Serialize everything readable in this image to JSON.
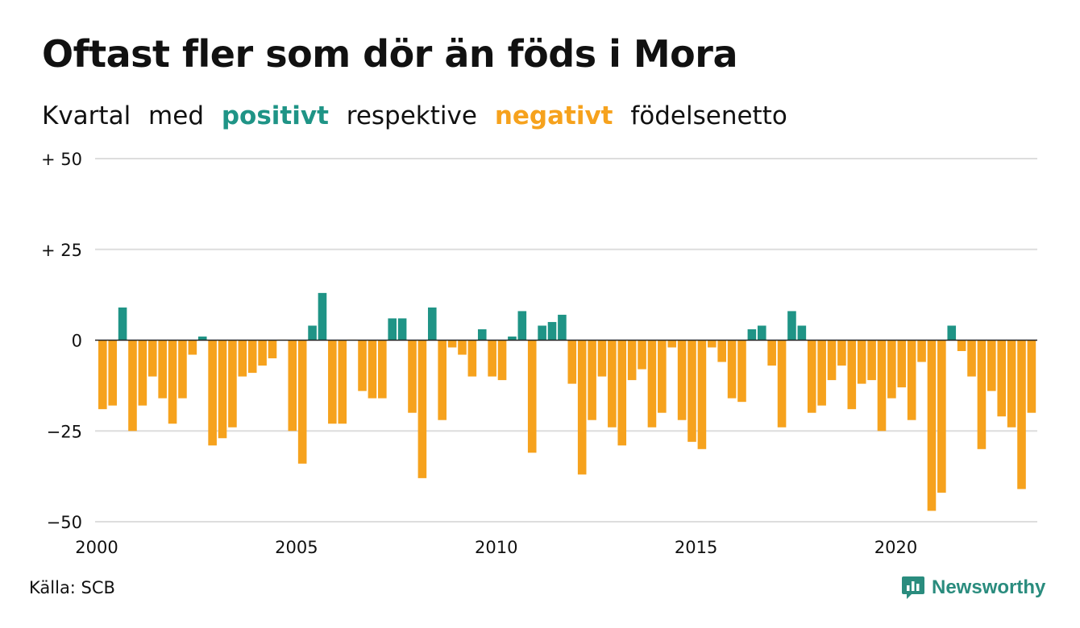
{
  "title": "Oftast fler som dör än föds i Mora",
  "subtitle": {
    "part1": "Kvartal",
    "part2": "med",
    "positive": "positivt",
    "part3": "respektive",
    "negative": "negativt",
    "part4": "födelsenetto"
  },
  "colors": {
    "positive": "#1f9486",
    "negative": "#f6a21d",
    "grid": "#dddddd",
    "zero_line": "#222222"
  },
  "source": "Källa: SCB",
  "brand": {
    "name": "Newsworthy",
    "icon": "newsworthy-logo-icon"
  },
  "chart_data": {
    "type": "bar",
    "title": "Oftast fler som dör än föds i Mora",
    "subtitle": "Kvartal med positivt respektive negativt födelsenetto",
    "xlabel": "",
    "ylabel": "",
    "x_start": "2000 Q1",
    "period": "quarter",
    "ylim": [
      -50,
      50
    ],
    "yticks": [
      50,
      25,
      0,
      -25,
      -50
    ],
    "ytick_labels": [
      "+ 50",
      "+ 25",
      "0",
      "−25",
      "−50"
    ],
    "xtick_labels": [
      "2000",
      "2005",
      "2010",
      "2015",
      "2020"
    ],
    "grid": true,
    "values": [
      -19,
      -18,
      9,
      -25,
      -18,
      -10,
      -16,
      -23,
      -16,
      -4,
      1,
      -29,
      -27,
      -24,
      -10,
      -9,
      -7,
      -5,
      0,
      -25,
      -34,
      4,
      13,
      -23,
      -23,
      0,
      -14,
      -16,
      -16,
      6,
      6,
      -20,
      -38,
      9,
      -22,
      -2,
      -4,
      -10,
      3,
      -10,
      -11,
      1,
      8,
      -31,
      4,
      5,
      7,
      -12,
      -37,
      -22,
      -10,
      -24,
      -29,
      -11,
      -8,
      -24,
      -20,
      -2,
      -22,
      -28,
      -30,
      -2,
      -6,
      -16,
      -17,
      3,
      4,
      -7,
      -24,
      8,
      4,
      -20,
      -18,
      -11,
      -7,
      -19,
      -12,
      -11,
      -25,
      -16,
      -13,
      -22,
      -6,
      -47,
      -42,
      4,
      -3,
      -10,
      -30,
      -14,
      -21,
      -24,
      -41,
      -20
    ]
  }
}
